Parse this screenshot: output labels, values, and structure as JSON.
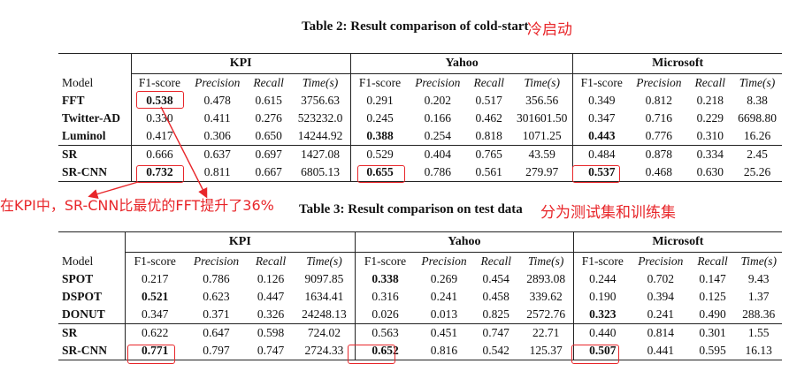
{
  "annotations": {
    "coldstart_note": "冷启动",
    "kpi_note": "在KPI中，SR-CNN比最优的FFT提升了36%",
    "split_note": "分为测试集和训练集"
  },
  "table2": {
    "caption": "Table 2: Result comparison of cold-start",
    "groups": [
      "KPI",
      "Yahoo",
      "Microsoft"
    ],
    "model_header": "Model",
    "columns": [
      "F1-score",
      "Precision",
      "Recall",
      "Time(s)"
    ],
    "rows": [
      {
        "model": "FFT",
        "cells": [
          "0.538",
          "0.478",
          "0.615",
          "3756.63",
          "0.291",
          "0.202",
          "0.517",
          "356.56",
          "0.349",
          "0.812",
          "0.218",
          "8.38"
        ]
      },
      {
        "model": "Twitter-AD",
        "cells": [
          "0.330",
          "0.411",
          "0.276",
          "523232.0",
          "0.245",
          "0.166",
          "0.462",
          "301601.50",
          "0.347",
          "0.716",
          "0.229",
          "6698.80"
        ]
      },
      {
        "model": "Luminol",
        "cells": [
          "0.417",
          "0.306",
          "0.650",
          "14244.92",
          "0.388",
          "0.254",
          "0.818",
          "1071.25",
          "0.443",
          "0.776",
          "0.310",
          "16.26"
        ]
      },
      {
        "model": "SR",
        "cells": [
          "0.666",
          "0.637",
          "0.697",
          "1427.08",
          "0.529",
          "0.404",
          "0.765",
          "43.59",
          "0.484",
          "0.878",
          "0.334",
          "2.45"
        ]
      },
      {
        "model": "SR-CNN",
        "cells": [
          "0.732",
          "0.811",
          "0.667",
          "6805.13",
          "0.655",
          "0.786",
          "0.561",
          "279.97",
          "0.537",
          "0.468",
          "0.630",
          "25.26"
        ]
      }
    ]
  },
  "table3": {
    "caption": "Table 3: Result comparison on test data",
    "groups": [
      "KPI",
      "Yahoo",
      "Microsoft"
    ],
    "model_header": "Model",
    "columns": [
      "F1-score",
      "Precision",
      "Recall",
      "Time(s)"
    ],
    "rows": [
      {
        "model": "SPOT",
        "cells": [
          "0.217",
          "0.786",
          "0.126",
          "9097.85",
          "0.338",
          "0.269",
          "0.454",
          "2893.08",
          "0.244",
          "0.702",
          "0.147",
          "9.43"
        ]
      },
      {
        "model": "DSPOT",
        "cells": [
          "0.521",
          "0.623",
          "0.447",
          "1634.41",
          "0.316",
          "0.241",
          "0.458",
          "339.62",
          "0.190",
          "0.394",
          "0.125",
          "1.37"
        ]
      },
      {
        "model": "DONUT",
        "cells": [
          "0.347",
          "0.371",
          "0.326",
          "24248.13",
          "0.026",
          "0.013",
          "0.825",
          "2572.76",
          "0.323",
          "0.241",
          "0.490",
          "288.36"
        ]
      },
      {
        "model": "SR",
        "cells": [
          "0.622",
          "0.647",
          "0.598",
          "724.02",
          "0.563",
          "0.451",
          "0.747",
          "22.71",
          "0.440",
          "0.814",
          "0.301",
          "1.55"
        ]
      },
      {
        "model": "SR-CNN",
        "cells": [
          "0.771",
          "0.797",
          "0.747",
          "2724.33",
          "0.652",
          "0.816",
          "0.542",
          "125.37",
          "0.507",
          "0.441",
          "0.595",
          "16.13"
        ]
      }
    ]
  }
}
